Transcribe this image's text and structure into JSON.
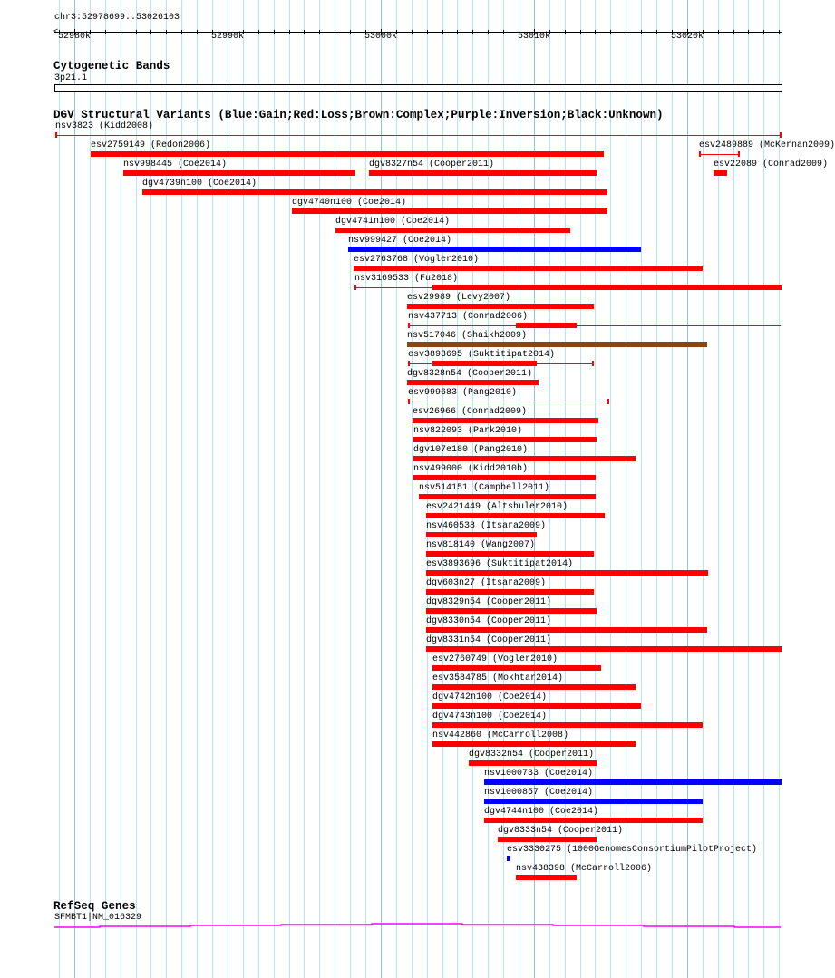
{
  "ruler": {
    "region_label": "chr3:52978699..53026103",
    "start": 52978699,
    "end": 53026103,
    "tick_labels": [
      {
        "bp": 52980000,
        "label": "52980k"
      },
      {
        "bp": 52990000,
        "label": "52990k"
      },
      {
        "bp": 53000000,
        "label": "53000k"
      },
      {
        "bp": 53010000,
        "label": "53010k"
      },
      {
        "bp": 53020000,
        "label": "53020k"
      }
    ]
  },
  "cytoband_track": {
    "title": "Cytogenetic Bands",
    "band_label": "3p21.1"
  },
  "dgv_track": {
    "title": "DGV Structural Variants (Blue:Gain;Red:Loss;Brown:Complex;Purple:Inversion;Black:Unknown)",
    "colors": {
      "gain": "#0000ff",
      "loss": "#ff0000",
      "complex": "#8b4513"
    },
    "rows": [
      [
        {
          "label": "nsv3823 (Kidd2008)",
          "type": "loss",
          "start": 52978758,
          "end": 53026102,
          "style": "line"
        }
      ],
      [
        {
          "label": "esv2759149 (Redon2006)",
          "type": "loss",
          "start": 52981066,
          "end": 53014503
        },
        {
          "label": "esv2489889 (McKernan2009)",
          "type": "loss",
          "start": 53020776,
          "end": 53023380,
          "style": "line"
        }
      ],
      [
        {
          "label": "nsv998445 (Coe2014)",
          "type": "loss",
          "start": 52983197,
          "end": 52998288
        },
        {
          "label": "dgv8327n54 (Cooper2011)",
          "type": "loss",
          "start": 52999234,
          "end": 53014029
        },
        {
          "label": "esv22089 (Conrad2009)",
          "type": "loss",
          "start": 53021723,
          "end": 53022551
        }
      ],
      [
        {
          "label": "dgv4739n100 (Coe2014)",
          "type": "loss",
          "start": 52984439,
          "end": 53014740
        }
      ],
      [
        {
          "label": "dgv4740n100 (Coe2014)",
          "type": "loss",
          "start": 52994204,
          "end": 53014740
        }
      ],
      [
        {
          "label": "dgv4741n100 (Coe2014)",
          "type": "loss",
          "start": 52997045,
          "end": 53012313
        }
      ],
      [
        {
          "label": "nsv999427 (Coe2014)",
          "type": "gain",
          "start": 52997873,
          "end": 53016929
        }
      ],
      [
        {
          "label": "esv2763768 (Vogler2010)",
          "type": "loss",
          "start": 52998228,
          "end": 53020954
        }
      ],
      [
        {
          "label": "nsv3169533 (Fu2018)",
          "type": "loss",
          "start": 52998288,
          "end": 53026103,
          "thick_start": 53003377,
          "thick_end": 53026103
        }
      ],
      [
        {
          "label": "esv29989 (Levy2007)",
          "type": "loss",
          "start": 53001720,
          "end": 53013852
        }
      ],
      [
        {
          "label": "nsv437713 (Conrad2006)",
          "type": "loss",
          "start": 53001779,
          "end": 53026103,
          "thick_start": 53008822,
          "thick_end": 53012728
        }
      ],
      [
        {
          "label": "nsv517046 (Shaikh2009)",
          "type": "complex",
          "start": 53001720,
          "end": 53021249
        }
      ],
      [
        {
          "label": "esv3893695 (Suktitipat2014)",
          "type": "loss",
          "start": 53001779,
          "end": 53013852,
          "thick_start": 53003377,
          "thick_end": 53010124
        }
      ],
      [
        {
          "label": "dgv8328n54 (Cooper2011)",
          "type": "loss",
          "start": 53001720,
          "end": 53010242
        }
      ],
      [
        {
          "label": "esv999683 (Pang2010)",
          "type": "loss",
          "start": 53001779,
          "end": 53014858,
          "style": "line"
        }
      ],
      [
        {
          "label": "esv26966 (Conrad2009)",
          "type": "loss",
          "start": 53002075,
          "end": 53014148
        }
      ],
      [
        {
          "label": "nsv822093 (Park2010)",
          "type": "loss",
          "start": 53002134,
          "end": 53014029
        }
      ],
      [
        {
          "label": "dgv107e180 (Pang2010)",
          "type": "loss",
          "start": 53002134,
          "end": 53016574
        }
      ],
      [
        {
          "label": "nsv499000 (Kidd2010b)",
          "type": "loss",
          "start": 53002134,
          "end": 53013970
        }
      ],
      [
        {
          "label": "nsv514151 (Campbell2011)",
          "type": "loss",
          "start": 53002489,
          "end": 53013970
        }
      ],
      [
        {
          "label": "esv2421449 (Altshuler2010)",
          "type": "loss",
          "start": 53002963,
          "end": 53014562
        }
      ],
      [
        {
          "label": "nsv460538 (Itsara2009)",
          "type": "loss",
          "start": 53002963,
          "end": 53010124
        }
      ],
      [
        {
          "label": "nsv818140 (Wang2007)",
          "type": "loss",
          "start": 53002963,
          "end": 53013852
        }
      ],
      [
        {
          "label": "esv3893696 (Suktitipat2014)",
          "type": "loss",
          "start": 53002963,
          "end": 53021309
        }
      ],
      [
        {
          "label": "dgv603n27 (Itsara2009)",
          "type": "loss",
          "start": 53002963,
          "end": 53013852
        }
      ],
      [
        {
          "label": "dgv8329n54 (Cooper2011)",
          "type": "loss",
          "start": 53002963,
          "end": 53014029
        }
      ],
      [
        {
          "label": "dgv8330n54 (Cooper2011)",
          "type": "loss",
          "start": 53002963,
          "end": 53021249
        }
      ],
      [
        {
          "label": "dgv8331n54 (Cooper2011)",
          "type": "loss",
          "start": 53002963,
          "end": 53026103
        }
      ],
      [
        {
          "label": "esv2760749 (Vogler2010)",
          "type": "loss",
          "start": 53003377,
          "end": 53014325
        }
      ],
      [
        {
          "label": "esv3584785 (Mokhtar2014)",
          "type": "loss",
          "start": 53003377,
          "end": 53016574
        }
      ],
      [
        {
          "label": "dgv4742n100 (Coe2014)",
          "type": "loss",
          "start": 53003377,
          "end": 53016929
        }
      ],
      [
        {
          "label": "dgv4743n100 (Coe2014)",
          "type": "loss",
          "start": 53003377,
          "end": 53020954
        }
      ],
      [
        {
          "label": "nsv442860 (McCarroll2008)",
          "type": "loss",
          "start": 53003377,
          "end": 53016574
        }
      ],
      [
        {
          "label": "dgv8332n54 (Cooper2011)",
          "type": "loss",
          "start": 53005744,
          "end": 53014029
        }
      ],
      [
        {
          "label": "nsv1000733 (Coe2014)",
          "type": "gain",
          "start": 53006750,
          "end": 53026103
        }
      ],
      [
        {
          "label": "nsv1000857 (Coe2014)",
          "type": "gain",
          "start": 53006750,
          "end": 53020954
        }
      ],
      [
        {
          "label": "dgv4744n100 (Coe2014)",
          "type": "loss",
          "start": 53006750,
          "end": 53020954
        }
      ],
      [
        {
          "label": "dgv8333n54 (Cooper2011)",
          "type": "loss",
          "start": 53007638,
          "end": 53014029
        }
      ],
      [
        {
          "label": "esv3330275 (1000GenomesConsortiumPilotProject)",
          "type": "gain",
          "start": 53008230,
          "end": 53008408
        }
      ],
      [
        {
          "label": "nsv438398 (McCarroll2006)",
          "type": "loss",
          "start": 53008822,
          "end": 53012728
        }
      ]
    ]
  },
  "refseq_track": {
    "title": "RefSeq Genes",
    "gene_label": "SFMBT1|NM_016329",
    "color": "#ff00ff"
  }
}
